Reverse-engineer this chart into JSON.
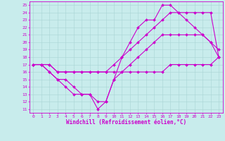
{
  "xlabel": "Windchill (Refroidissement éolien,°C)",
  "xlim": [
    -0.5,
    23.5
  ],
  "ylim": [
    10.5,
    25.5
  ],
  "yticks": [
    11,
    12,
    13,
    14,
    15,
    16,
    17,
    18,
    19,
    20,
    21,
    22,
    23,
    24,
    25
  ],
  "xticks": [
    0,
    1,
    2,
    3,
    4,
    5,
    6,
    7,
    8,
    9,
    10,
    11,
    12,
    13,
    14,
    15,
    16,
    17,
    18,
    19,
    20,
    21,
    22,
    23
  ],
  "bg_color": "#c8ecec",
  "grid_color": "#a8d4d4",
  "line_color": "#cc00cc",
  "line1_x": [
    0,
    1,
    2,
    3,
    4,
    5,
    6,
    7,
    8,
    9,
    10,
    11,
    12,
    13,
    14,
    15,
    16,
    17,
    18,
    19,
    20,
    21,
    22,
    23
  ],
  "line1_y": [
    17,
    17,
    17,
    16,
    16,
    16,
    16,
    16,
    16,
    16,
    16,
    16,
    16,
    16,
    16,
    16,
    16,
    17,
    17,
    17,
    17,
    17,
    17,
    18
  ],
  "line2_x": [
    0,
    1,
    2,
    3,
    4,
    5,
    6,
    7,
    8,
    9,
    10,
    11,
    12,
    13,
    14,
    15,
    16,
    17,
    18,
    19,
    20,
    21,
    22,
    23
  ],
  "line2_y": [
    17,
    17,
    16,
    15,
    15,
    14,
    13,
    13,
    11,
    12,
    15,
    16,
    17,
    18,
    19,
    20,
    21,
    21,
    21,
    21,
    21,
    21,
    20,
    19
  ],
  "line3_x": [
    0,
    1,
    2,
    3,
    4,
    5,
    6,
    7,
    8,
    9,
    10,
    11,
    12,
    13,
    14,
    15,
    16,
    17,
    18,
    19,
    20,
    21,
    22,
    23
  ],
  "line3_y": [
    17,
    17,
    17,
    16,
    16,
    16,
    16,
    16,
    16,
    16,
    17,
    18,
    19,
    20,
    21,
    22,
    23,
    24,
    24,
    24,
    24,
    24,
    24,
    18
  ],
  "line4_x": [
    0,
    1,
    2,
    3,
    4,
    5,
    6,
    7,
    8,
    9,
    10,
    11,
    12,
    13,
    14,
    15,
    16,
    17,
    18,
    19,
    20,
    21,
    22,
    23
  ],
  "line4_y": [
    17,
    17,
    16,
    15,
    14,
    13,
    13,
    13,
    12,
    12,
    15,
    18,
    20,
    22,
    23,
    23,
    25,
    25,
    24,
    23,
    22,
    21,
    20,
    18
  ],
  "marker": "D",
  "markersize": 2.0,
  "linewidth": 0.8,
  "tick_fontsize": 4.5,
  "label_fontsize": 5.5
}
